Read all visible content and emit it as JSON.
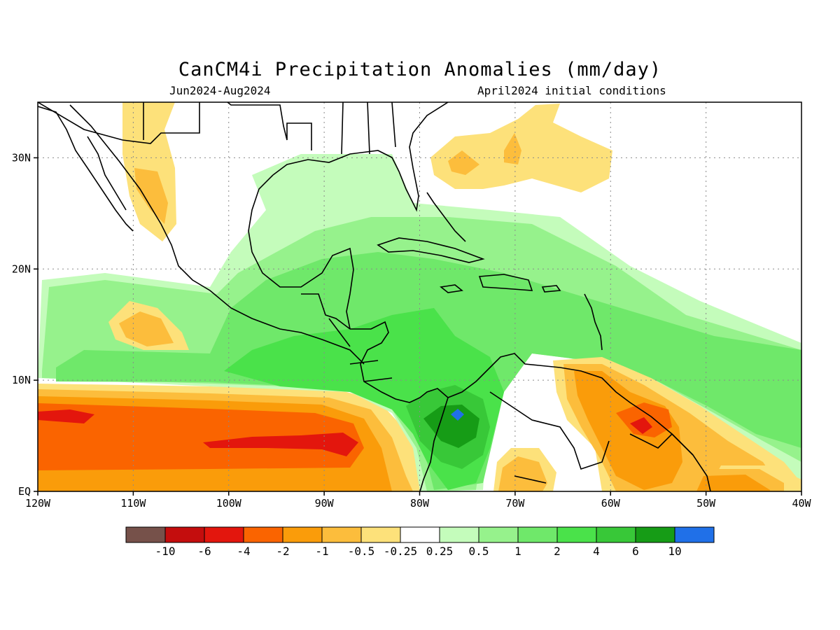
{
  "title": "CanCM4i Precipitation Anomalies (mm/day)",
  "subtitle_left": "Jun2024-Aug2024",
  "subtitle_right": "April2024 initial conditions",
  "map": {
    "lon_labels": [
      "120W",
      "110W",
      "100W",
      "90W",
      "80W",
      "70W",
      "60W",
      "50W",
      "40W"
    ],
    "lat_labels": [
      "30N",
      "20N",
      "10N",
      "EQ"
    ],
    "lon_values": [
      -120,
      -110,
      -100,
      -90,
      -80,
      -70,
      -60,
      -50,
      -40
    ],
    "lat_values": [
      30,
      20,
      10,
      0
    ],
    "lon_range": [
      -120,
      -40
    ],
    "lat_range": [
      0,
      35
    ],
    "gridlines": "dotted"
  },
  "colorbar": {
    "labels": [
      "-10",
      "-6",
      "-4",
      "-2",
      "-1",
      "-0.5",
      "-0.25",
      "0.25",
      "0.5",
      "1",
      "2",
      "4",
      "6",
      "10"
    ],
    "colors": [
      "#76514a",
      "#c40d0d",
      "#e3160d",
      "#fa6400",
      "#fa9c0a",
      "#fcbd3c",
      "#fde17a",
      "#ffffff",
      "#c4fcbb",
      "#96f28c",
      "#6fe86a",
      "#4ae24a",
      "#38c838",
      "#169c16",
      "#2070e8"
    ]
  },
  "anomaly_colors": {
    "dry_light": "#fde17a",
    "dry_moderate": "#fcbd3c",
    "dry_strong": "#fa9c0a",
    "dry_heavy": "#fa6400",
    "dry_extreme": "#e3160d",
    "wet_light": "#c4fcbb",
    "wet_moderate": "#96f28c",
    "wet_strong": "#6fe86a",
    "wet_heavy": "#4ae24a",
    "wet_very_heavy": "#38c838",
    "wet_extreme": "#169c16",
    "wet_max": "#2070e8"
  }
}
